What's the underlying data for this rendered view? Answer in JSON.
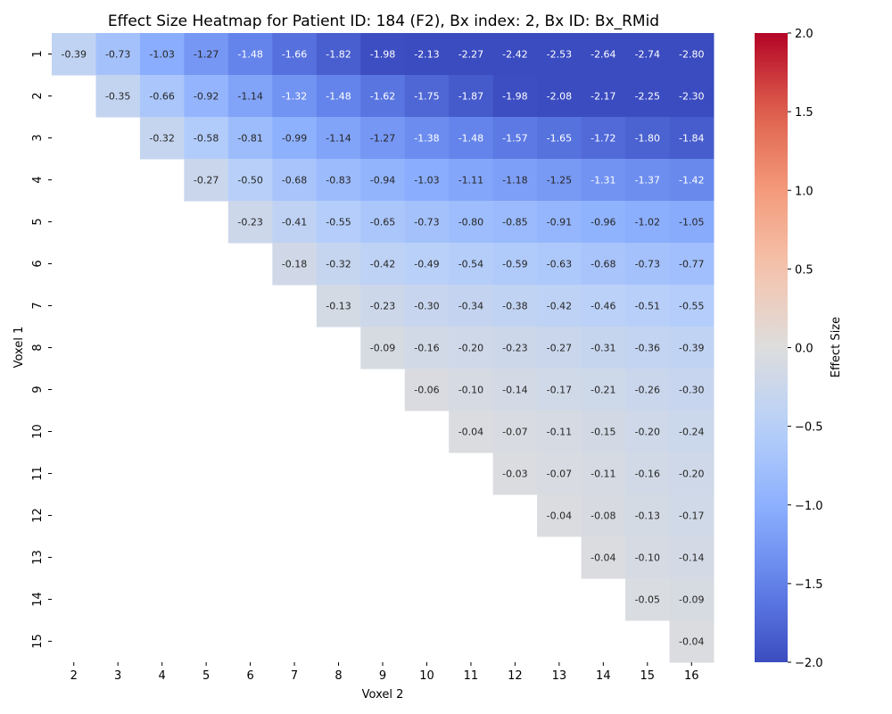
{
  "chart_data": {
    "type": "heatmap",
    "title": "Effect Size Heatmap for Patient ID: 184 (F2), Bx index: 2, Bx ID: Bx_RMid",
    "xlabel": "Voxel 2",
    "ylabel": "Voxel 1",
    "colorbar_label": "Effect Size",
    "colormap": "coolwarm",
    "vmin": -2.0,
    "vmax": 2.0,
    "colorbar_ticks": [
      "2.0",
      "1.5",
      "1.0",
      "0.5",
      "0.0",
      "−0.5",
      "−1.0",
      "−1.5",
      "−2.0"
    ],
    "x_categories": [
      "2",
      "3",
      "4",
      "5",
      "6",
      "7",
      "8",
      "9",
      "10",
      "11",
      "12",
      "13",
      "14",
      "15",
      "16"
    ],
    "y_categories": [
      "1",
      "2",
      "3",
      "4",
      "5",
      "6",
      "7",
      "8",
      "9",
      "10",
      "11",
      "12",
      "13",
      "14",
      "15"
    ],
    "values": [
      [
        -0.39,
        -0.73,
        -1.03,
        -1.27,
        -1.48,
        -1.66,
        -1.82,
        -1.98,
        -2.13,
        -2.27,
        -2.42,
        -2.53,
        -2.64,
        -2.74,
        -2.8
      ],
      [
        null,
        -0.35,
        -0.66,
        -0.92,
        -1.14,
        -1.32,
        -1.48,
        -1.62,
        -1.75,
        -1.87,
        -1.98,
        -2.08,
        -2.17,
        -2.25,
        -2.3
      ],
      [
        null,
        null,
        -0.32,
        -0.58,
        -0.81,
        -0.99,
        -1.14,
        -1.27,
        -1.38,
        -1.48,
        -1.57,
        -1.65,
        -1.72,
        -1.8,
        -1.84
      ],
      [
        null,
        null,
        null,
        -0.27,
        -0.5,
        -0.68,
        -0.83,
        -0.94,
        -1.03,
        -1.11,
        -1.18,
        -1.25,
        -1.31,
        -1.37,
        -1.42
      ],
      [
        null,
        null,
        null,
        null,
        -0.23,
        -0.41,
        -0.55,
        -0.65,
        -0.73,
        -0.8,
        -0.85,
        -0.91,
        -0.96,
        -1.02,
        -1.05
      ],
      [
        null,
        null,
        null,
        null,
        null,
        -0.18,
        -0.32,
        -0.42,
        -0.49,
        -0.54,
        -0.59,
        -0.63,
        -0.68,
        -0.73,
        -0.77
      ],
      [
        null,
        null,
        null,
        null,
        null,
        null,
        -0.13,
        -0.23,
        -0.3,
        -0.34,
        -0.38,
        -0.42,
        -0.46,
        -0.51,
        -0.55
      ],
      [
        null,
        null,
        null,
        null,
        null,
        null,
        null,
        -0.09,
        -0.16,
        -0.2,
        -0.23,
        -0.27,
        -0.31,
        -0.36,
        -0.39
      ],
      [
        null,
        null,
        null,
        null,
        null,
        null,
        null,
        null,
        -0.06,
        -0.1,
        -0.14,
        -0.17,
        -0.21,
        -0.26,
        -0.3
      ],
      [
        null,
        null,
        null,
        null,
        null,
        null,
        null,
        null,
        null,
        -0.04,
        -0.07,
        -0.11,
        -0.15,
        -0.2,
        -0.24
      ],
      [
        null,
        null,
        null,
        null,
        null,
        null,
        null,
        null,
        null,
        null,
        -0.03,
        -0.07,
        -0.11,
        -0.16,
        -0.2
      ],
      [
        null,
        null,
        null,
        null,
        null,
        null,
        null,
        null,
        null,
        null,
        null,
        -0.04,
        -0.08,
        -0.13,
        -0.17
      ],
      [
        null,
        null,
        null,
        null,
        null,
        null,
        null,
        null,
        null,
        null,
        null,
        null,
        -0.04,
        -0.1,
        -0.14
      ],
      [
        null,
        null,
        null,
        null,
        null,
        null,
        null,
        null,
        null,
        null,
        null,
        null,
        null,
        -0.05,
        -0.09
      ],
      [
        null,
        null,
        null,
        null,
        null,
        null,
        null,
        null,
        null,
        null,
        null,
        null,
        null,
        null,
        -0.04
      ]
    ]
  }
}
